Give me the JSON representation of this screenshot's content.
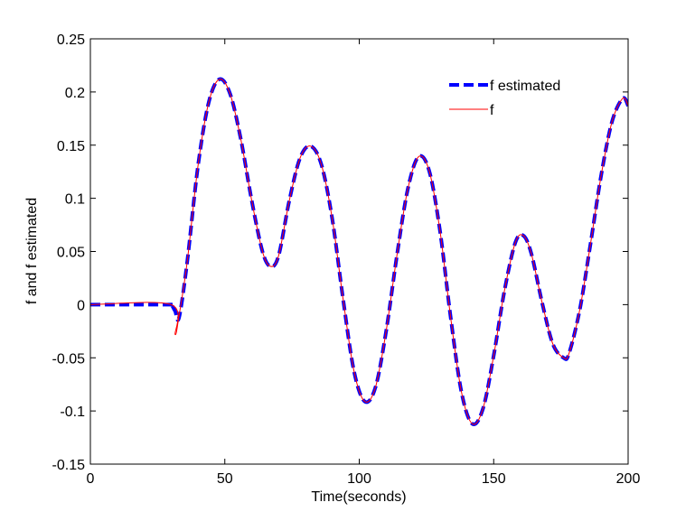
{
  "chart_data": {
    "type": "line",
    "title": "",
    "xlabel": "Time(seconds)",
    "ylabel": "f and f estimated",
    "xlim": [
      0,
      200
    ],
    "ylim": [
      -0.15,
      0.25
    ],
    "xticks": [
      0,
      50,
      100,
      150,
      200
    ],
    "xtick_labels": [
      "0",
      "50",
      "100",
      "150",
      "200"
    ],
    "yticks": [
      -0.15,
      -0.1,
      -0.05,
      0,
      0.05,
      0.1,
      0.15,
      0.2,
      0.25
    ],
    "ytick_labels": [
      "-0.15",
      "-0.1",
      "-0.05",
      "0",
      "0.05",
      "0.1",
      "0.15",
      "0.2",
      "0.25"
    ],
    "grid": false,
    "legend_position": "top-right",
    "legend": [
      "f estimated",
      "f"
    ],
    "series": [
      {
        "name": "f estimated",
        "color": "#0000ff",
        "style": "dashed",
        "x": [
          0,
          28,
          30,
          31.5,
          33,
          36,
          40,
          44,
          48,
          52,
          56,
          60,
          64,
          67,
          70,
          74,
          78,
          82,
          86,
          90,
          94,
          98,
          102,
          106,
          110,
          114,
          118,
          122,
          126,
          130,
          134,
          138,
          142,
          146,
          150,
          154,
          158,
          161,
          164,
          168,
          172,
          176,
          178,
          182,
          186,
          190,
          194,
          198,
          200
        ],
        "y": [
          0,
          0,
          0,
          -0.006,
          -0.012,
          0.04,
          0.13,
          0.19,
          0.212,
          0.198,
          0.155,
          0.098,
          0.05,
          0.036,
          0.046,
          0.098,
          0.138,
          0.149,
          0.131,
          0.08,
          0.005,
          -0.062,
          -0.091,
          -0.078,
          -0.025,
          0.046,
          0.108,
          0.139,
          0.126,
          0.07,
          -0.012,
          -0.082,
          -0.112,
          -0.098,
          -0.048,
          0.013,
          0.058,
          0.065,
          0.048,
          0.002,
          -0.037,
          -0.05,
          -0.046,
          -0.005,
          0.057,
          0.122,
          0.172,
          0.194,
          0.187
        ]
      },
      {
        "name": "f",
        "color": "#ff0000",
        "style": "solid",
        "x": [
          0,
          30,
          31.5,
          33,
          36,
          40,
          44,
          48,
          52,
          56,
          60,
          64,
          67,
          70,
          74,
          78,
          82,
          86,
          90,
          94,
          98,
          102,
          106,
          110,
          114,
          118,
          122,
          126,
          130,
          134,
          138,
          142,
          146,
          150,
          154,
          158,
          161,
          164,
          168,
          172,
          176,
          178,
          182,
          186,
          190,
          194,
          198,
          200
        ],
        "y": [
          0,
          0,
          -0.028,
          -0.01,
          0.04,
          0.13,
          0.19,
          0.212,
          0.198,
          0.155,
          0.098,
          0.05,
          0.036,
          0.046,
          0.098,
          0.138,
          0.149,
          0.131,
          0.08,
          0.005,
          -0.062,
          -0.091,
          -0.078,
          -0.025,
          0.046,
          0.108,
          0.139,
          0.126,
          0.07,
          -0.012,
          -0.082,
          -0.112,
          -0.098,
          -0.048,
          0.013,
          0.058,
          0.065,
          0.048,
          0.002,
          -0.037,
          -0.05,
          -0.046,
          -0.005,
          0.057,
          0.122,
          0.172,
          0.194,
          0.187
        ]
      }
    ]
  }
}
